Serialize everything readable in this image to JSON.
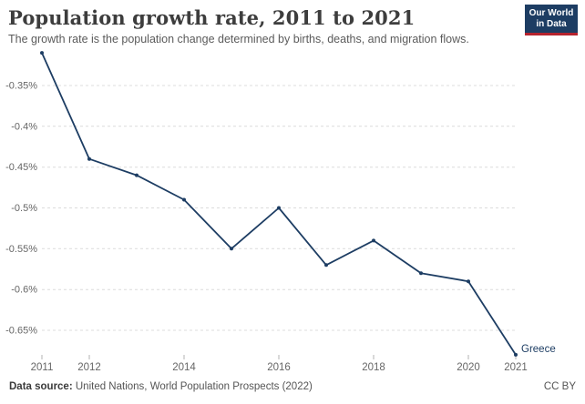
{
  "header": {
    "title": "Population growth rate, 2011 to 2021",
    "subtitle": "The growth rate is the population change determined by births, deaths, and migration flows.",
    "logo": {
      "line1": "Our World",
      "line2": "in Data"
    }
  },
  "colors": {
    "accent_navy": "#1d3d63",
    "logo_stripe_red": "#b5232e",
    "grid_gray": "#dcdcdc",
    "axis_text_gray": "#666666"
  },
  "chart_data": {
    "type": "line",
    "title": "Population growth rate, 2011 to 2021",
    "unit": "%",
    "xlabel": "",
    "ylabel": "",
    "grid": "horizontal-dashed",
    "legend": "end-of-line-label",
    "xlim": [
      2011,
      2021
    ],
    "ylim": [
      -0.69,
      -0.3
    ],
    "x_ticks": [
      2011,
      2012,
      2014,
      2016,
      2018,
      2020,
      2021
    ],
    "y_ticks": [
      -0.35,
      -0.4,
      -0.45,
      -0.5,
      -0.55,
      -0.6,
      -0.65
    ],
    "y_tick_labels": [
      "-0.35%",
      "-0.4%",
      "-0.45%",
      "-0.5%",
      "-0.55%",
      "-0.6%",
      "-0.65%"
    ],
    "series": [
      {
        "name": "Greece",
        "color": "#1d3d63",
        "x": [
          2011,
          2012,
          2013,
          2014,
          2015,
          2016,
          2017,
          2018,
          2019,
          2020,
          2021
        ],
        "values": [
          -0.31,
          -0.44,
          -0.46,
          -0.49,
          -0.55,
          -0.5,
          -0.57,
          -0.54,
          -0.58,
          -0.59,
          -0.68
        ]
      }
    ]
  },
  "footer": {
    "source_label": "Data source:",
    "source_value": "United Nations, World Population Prospects (2022)",
    "license": "CC BY"
  }
}
